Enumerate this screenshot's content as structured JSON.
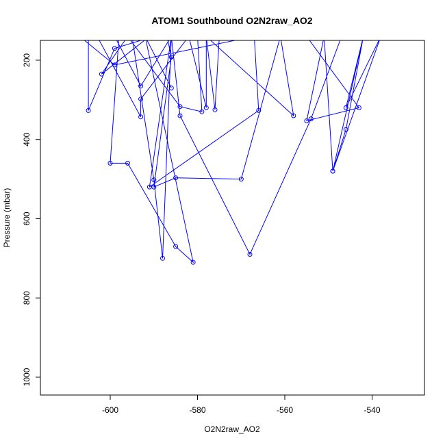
{
  "chart_data": {
    "type": "line",
    "title": "ATOM1 Southbound O2N2raw_AO2",
    "xlabel": "O2N2raw_AO2",
    "ylabel": "Pressure (mbar)",
    "xlim": [
      -616,
      -528
    ],
    "ylim": [
      1045,
      150
    ],
    "y_reversed": true,
    "x_ticks": [
      -600,
      -580,
      -560,
      -540
    ],
    "y_ticks": [
      200,
      400,
      600,
      800,
      1000
    ],
    "x_tick_labels": [
      "-600",
      "-580",
      "-560",
      "-540"
    ],
    "y_tick_labels": [
      "200",
      "400",
      "600",
      "800",
      "1000"
    ],
    "series": [
      {
        "color": "#0000ff",
        "x": [
          -605,
          -605,
          -599,
          -590,
          -583,
          -573,
          -567,
          -566,
          -591,
          -586,
          -602,
          -596,
          -602,
          -591,
          -567,
          -599,
          -607,
          -595,
          -587,
          -586,
          -590,
          -585,
          -570,
          -561,
          -558,
          -578,
          -578,
          -582,
          -578,
          -576,
          -575,
          -584,
          -596,
          -596,
          -584,
          -579,
          -580,
          -576,
          -582,
          -593,
          -593,
          -603,
          -610,
          -606,
          -600,
          -598,
          -600,
          -596,
          -585,
          -581,
          -592,
          -586,
          -592,
          -595,
          -590,
          -588,
          -586,
          -593,
          -599,
          -593,
          -586,
          -584,
          -568,
          -554,
          -547,
          -541,
          -538,
          -546,
          -542,
          -549,
          -551,
          -555,
          -543,
          -555,
          -538,
          -542,
          -546,
          -549,
          -538
        ],
        "y": [
          140,
          327,
          170,
          140,
          140,
          140,
          140,
          327,
          520,
          140,
          140,
          140,
          235,
          140,
          140,
          212,
          140,
          140,
          140,
          192,
          520,
          497,
          500,
          140,
          340,
          140,
          320,
          140,
          140,
          325,
          140,
          140,
          140,
          140,
          317,
          330,
          140,
          140,
          140,
          298,
          343,
          140,
          140,
          140,
          140,
          140,
          460,
          460,
          670,
          710,
          140,
          270,
          140,
          140,
          502,
          700,
          140,
          265,
          140,
          140,
          140,
          340,
          690,
          348,
          140,
          140,
          140,
          320,
          140,
          480,
          140,
          353,
          320,
          140,
          140,
          140,
          375,
          480,
          140
        ]
      }
    ]
  }
}
